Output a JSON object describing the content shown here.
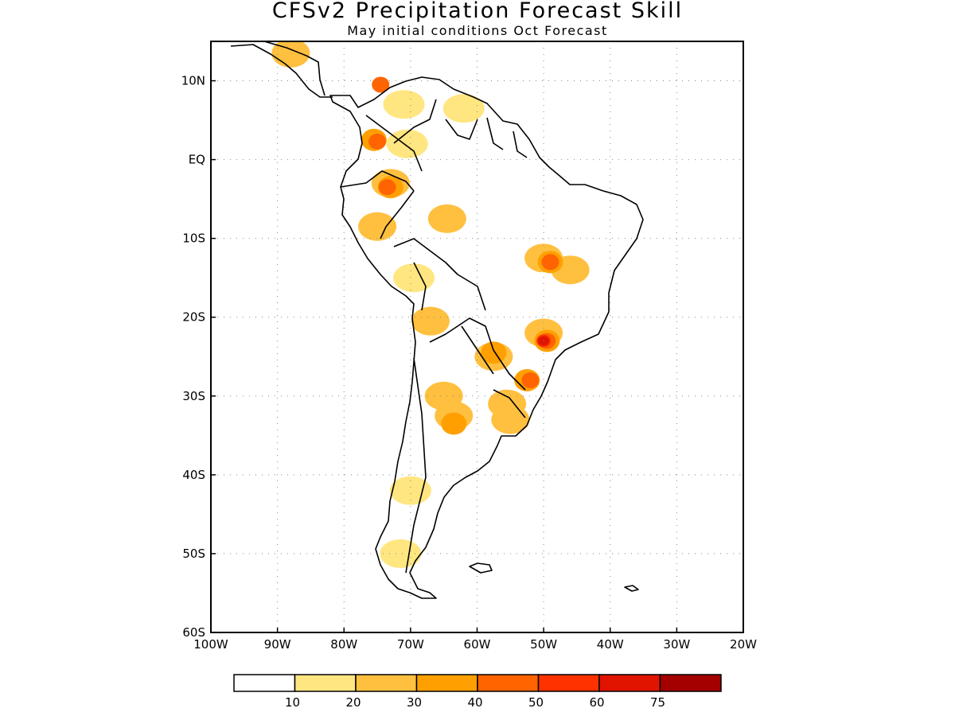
{
  "title": "CFSv2 Precipitation Forecast Skill",
  "subtitle": "May initial conditions  Oct Forecast",
  "map": {
    "lon_range": [
      -100,
      -20
    ],
    "lat_range": [
      -60,
      15
    ],
    "lon_ticks": [
      {
        "value": -100,
        "label": "100W"
      },
      {
        "value": -90,
        "label": "90W"
      },
      {
        "value": -80,
        "label": "80W"
      },
      {
        "value": -70,
        "label": "70W"
      },
      {
        "value": -60,
        "label": "60W"
      },
      {
        "value": -50,
        "label": "50W"
      },
      {
        "value": -40,
        "label": "40W"
      },
      {
        "value": -30,
        "label": "30W"
      },
      {
        "value": -20,
        "label": "20W"
      }
    ],
    "lat_ticks": [
      {
        "value": 10,
        "label": "10N"
      },
      {
        "value": 0,
        "label": "EQ"
      },
      {
        "value": -10,
        "label": "10S"
      },
      {
        "value": -20,
        "label": "20S"
      },
      {
        "value": -30,
        "label": "30S"
      },
      {
        "value": -40,
        "label": "40S"
      },
      {
        "value": -50,
        "label": "50S"
      },
      {
        "value": -60,
        "label": "60S"
      }
    ],
    "grid": "dotted"
  },
  "legend": {
    "colors": [
      "#ffffff",
      "#ffe680",
      "#ffc040",
      "#ffa000",
      "#ff6400",
      "#ff3200",
      "#e11400",
      "#a50000"
    ],
    "labels": [
      "10",
      "20",
      "30",
      "40",
      "50",
      "60",
      "75"
    ]
  },
  "chart_data": {
    "type": "heatmap",
    "title": "CFSv2 Precipitation Forecast Skill",
    "subtitle": "May initial conditions  Oct Forecast",
    "color_levels": [
      10,
      20,
      30,
      40,
      50,
      60,
      75
    ],
    "blobs": [
      {
        "lon": -75.5,
        "lat": 2.5,
        "level": 30
      },
      {
        "lon": -75.0,
        "lat": 2.3,
        "level": 40
      },
      {
        "lon": -73.0,
        "lat": -3.0,
        "level": 20
      },
      {
        "lon": -73.0,
        "lat": -3.5,
        "level": 30
      },
      {
        "lon": -73.5,
        "lat": -3.5,
        "level": 40
      },
      {
        "lon": -74.5,
        "lat": 9.5,
        "level": 40
      },
      {
        "lon": -71.0,
        "lat": 7.0,
        "level": 10
      },
      {
        "lon": -70.5,
        "lat": 2.0,
        "level": 10
      },
      {
        "lon": -88.0,
        "lat": 13.5,
        "level": 20
      },
      {
        "lon": -62.0,
        "lat": 6.5,
        "level": 10
      },
      {
        "lon": -64.5,
        "lat": -7.5,
        "level": 20
      },
      {
        "lon": -75.0,
        "lat": -8.5,
        "level": 20
      },
      {
        "lon": -50.0,
        "lat": -12.5,
        "level": 20
      },
      {
        "lon": -49.0,
        "lat": -13.0,
        "level": 30
      },
      {
        "lon": -49.0,
        "lat": -13.0,
        "level": 40
      },
      {
        "lon": -46.0,
        "lat": -14.0,
        "level": 20
      },
      {
        "lon": -50.0,
        "lat": -22.0,
        "level": 20
      },
      {
        "lon": -49.5,
        "lat": -23.0,
        "level": 30
      },
      {
        "lon": -49.5,
        "lat": -23.0,
        "level": 40
      },
      {
        "lon": -50.0,
        "lat": -23.0,
        "level": 50
      },
      {
        "lon": -50.0,
        "lat": -23.0,
        "level": 60
      },
      {
        "lon": -52.5,
        "lat": -28.0,
        "level": 30
      },
      {
        "lon": -52.0,
        "lat": -28.0,
        "level": 40
      },
      {
        "lon": -57.5,
        "lat": -25.0,
        "level": 20
      },
      {
        "lon": -57.5,
        "lat": -24.5,
        "level": 30
      },
      {
        "lon": -55.5,
        "lat": -31.0,
        "level": 20
      },
      {
        "lon": -55.0,
        "lat": -33.0,
        "level": 20
      },
      {
        "lon": -65.0,
        "lat": -30.0,
        "level": 20
      },
      {
        "lon": -63.5,
        "lat": -32.5,
        "level": 20
      },
      {
        "lon": -63.5,
        "lat": -33.5,
        "level": 30
      },
      {
        "lon": -69.5,
        "lat": -15.0,
        "level": 10
      },
      {
        "lon": -67.0,
        "lat": -20.5,
        "level": 20
      },
      {
        "lon": -70.0,
        "lat": -42.0,
        "level": 10
      },
      {
        "lon": -71.5,
        "lat": -50.0,
        "level": 10
      }
    ]
  }
}
